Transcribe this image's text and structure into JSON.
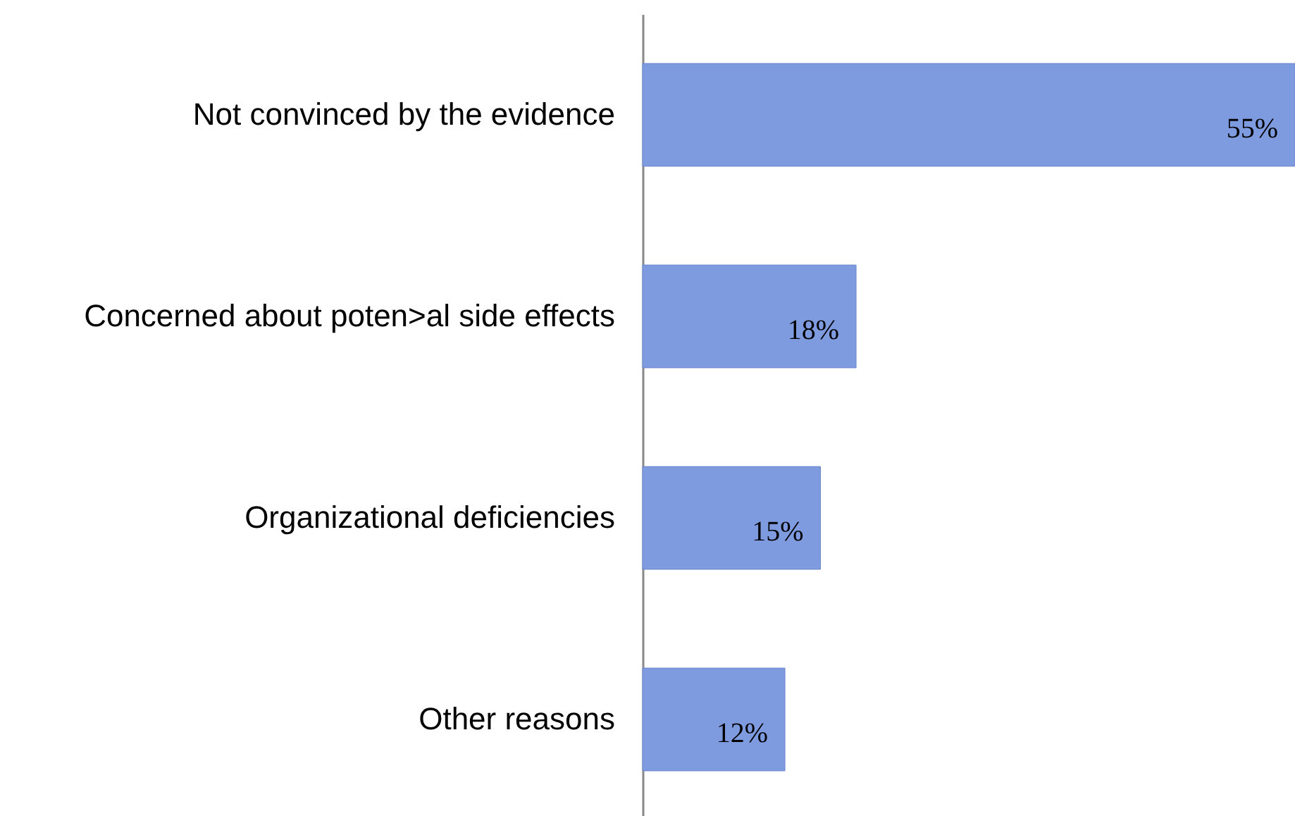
{
  "chart_data": {
    "type": "bar",
    "orientation": "horizontal",
    "categories": [
      "Not convinced by the evidence",
      "Concerned about poten>al side effects",
      "Organizational deficiencies",
      "Other reasons"
    ],
    "values": [
      55,
      18,
      15,
      12
    ],
    "value_labels": [
      "55%",
      "18%",
      "15%",
      "12%"
    ],
    "color": "#7f9be0",
    "xlim": [
      0,
      55
    ],
    "tick_labels": "y"
  }
}
